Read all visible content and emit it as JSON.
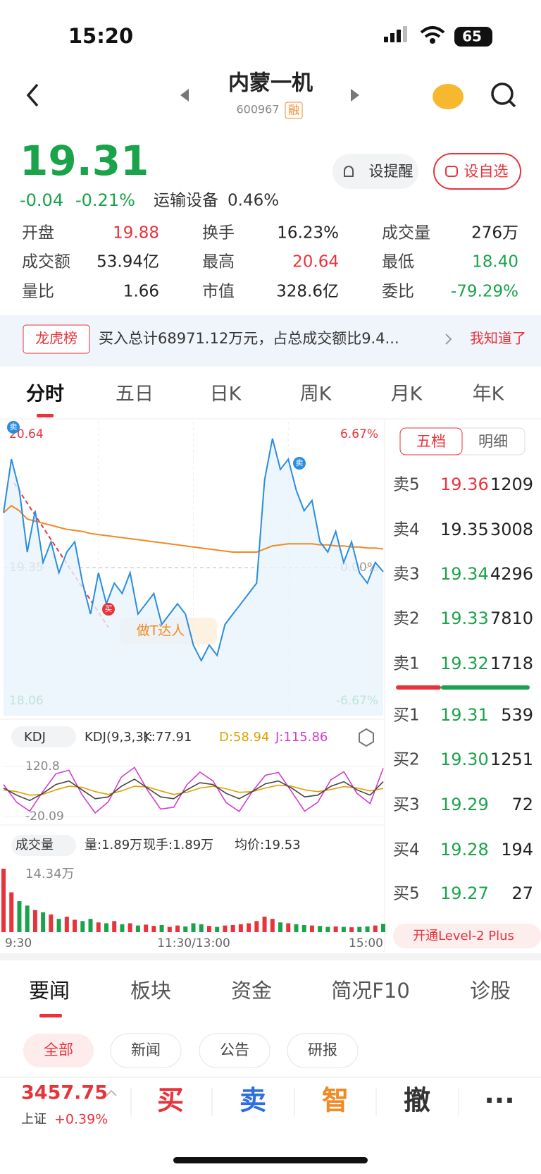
{
  "status": {
    "time": "15:20",
    "battery": "65"
  },
  "header": {
    "name": "内蒙一机",
    "code": "600967",
    "badge": "融"
  },
  "quote": {
    "price": "19.31",
    "change": "-0.04",
    "pct": "-0.21%",
    "sector": "运输设备",
    "sector_pct": "0.46%",
    "buttons": [
      "设提醒",
      "设自选"
    ]
  },
  "stats": [
    {
      "label": "开盘",
      "value": "19.88",
      "color": "#e8333b"
    },
    {
      "label": "换手",
      "value": "16.23%",
      "color": "#222"
    },
    {
      "label": "成交量",
      "value": "276万",
      "color": "#222"
    },
    {
      "label": "成交额",
      "value": "53.94亿",
      "color": "#222"
    },
    {
      "label": "最高",
      "value": "20.64",
      "color": "#e8333b"
    },
    {
      "label": "最低",
      "value": "18.40",
      "color": "#1aa34a"
    },
    {
      "label": "量比",
      "value": "1.66",
      "color": "#222"
    },
    {
      "label": "市值",
      "value": "328.6亿",
      "color": "#222"
    },
    {
      "label": "委比",
      "value": "-79.29%",
      "color": "#1aa34a"
    }
  ],
  "banner": {
    "tag": "龙虎榜",
    "text": "买入总计68971.12万元，占总成交额比9.4...",
    "action": "我知道了"
  },
  "tabs": [
    "分时",
    "五日",
    "日K",
    "周K",
    "月K",
    "年K"
  ],
  "chart_data": {
    "type": "line",
    "yticks": [
      20.64,
      19.35,
      18.06
    ],
    "right_ticks": [
      "6.67%",
      "0.00%",
      "-6.67%"
    ],
    "price_color": "#2a8de0",
    "avg_color": "#f08a24",
    "price": [
      19.88,
      20.4,
      20.1,
      19.5,
      19.9,
      19.4,
      19.6,
      19.3,
      19.5,
      19.6,
      19.2,
      18.9,
      19.3,
      19.0,
      19.2,
      19.1,
      19.3,
      18.9,
      19.0,
      19.1,
      18.8,
      18.9,
      19.0,
      18.9,
      18.6,
      18.45,
      18.6,
      18.5,
      18.8,
      18.9,
      19.0,
      19.1,
      19.2,
      20.2,
      20.6,
      20.3,
      20.4,
      20.1,
      19.9,
      20.0,
      19.6,
      19.5,
      19.7,
      19.4,
      19.6,
      19.3,
      19.2,
      19.4,
      19.31
    ],
    "avg": [
      19.88,
      19.95,
      19.9,
      19.82,
      19.8,
      19.78,
      19.76,
      19.74,
      19.72,
      19.71,
      19.7,
      19.68,
      19.67,
      19.66,
      19.65,
      19.64,
      19.63,
      19.62,
      19.61,
      19.6,
      19.59,
      19.58,
      19.57,
      19.56,
      19.55,
      19.54,
      19.53,
      19.52,
      19.51,
      19.5,
      19.5,
      19.5,
      19.5,
      19.53,
      19.56,
      19.57,
      19.58,
      19.58,
      19.58,
      19.58,
      19.57,
      19.57,
      19.56,
      19.56,
      19.55,
      19.55,
      19.54,
      19.54,
      19.53
    ],
    "markers": [
      "卖",
      "买",
      "卖"
    ],
    "promo": "做T达人",
    "times": [
      "9:30",
      "11:30/13:00",
      "15:00"
    ]
  },
  "kdj": {
    "label": "KDJ",
    "params": "KDJ(9,3,3):",
    "k": "K:77.91",
    "d": "D:58.94",
    "j": "J:115.86",
    "yticks": [
      120.8,
      -20.09
    ],
    "K": [
      60,
      40,
      25,
      45,
      70,
      80,
      55,
      30,
      35,
      65,
      85,
      60,
      35,
      30,
      55,
      75,
      70,
      45,
      30,
      50,
      72,
      80,
      60,
      35,
      40,
      65,
      78,
      55,
      40,
      77.91
    ],
    "D": [
      55,
      50,
      40,
      42,
      55,
      65,
      62,
      50,
      42,
      52,
      65,
      63,
      52,
      42,
      48,
      60,
      65,
      58,
      48,
      50,
      60,
      68,
      65,
      55,
      50,
      56,
      64,
      60,
      52,
      58.94
    ],
    "J": [
      70,
      20,
      -5,
      50,
      100,
      110,
      41,
      -10,
      21,
      91,
      118,
      54,
      1,
      6,
      69,
      105,
      80,
      19,
      -6,
      50,
      96,
      104,
      50,
      -5,
      20,
      83,
      106,
      45,
      16,
      115.86
    ]
  },
  "volume": {
    "label": "成交量",
    "qty": "量:1.89万",
    "now": "现手:1.89万",
    "avg": "均价:19.53",
    "yticks": [
      {
        "value": 143400,
        "label": "14.34万"
      }
    ],
    "values": [
      143400,
      90000,
      70000,
      60000,
      50000,
      45000,
      40000,
      30000,
      35000,
      28000,
      25000,
      30000,
      22000,
      20000,
      25000,
      18000,
      20000,
      15000,
      17000,
      14000,
      16000,
      12000,
      15000,
      13000,
      20000,
      18000,
      14000,
      12000,
      15000,
      16000,
      18000,
      20000,
      25000,
      35000,
      30000,
      22000,
      20000,
      18000,
      16000,
      15000,
      14000,
      12000,
      13000,
      12000,
      11000,
      12000,
      13000,
      15000,
      18900
    ]
  },
  "orderbook": {
    "tabs": [
      "五档",
      "明细"
    ],
    "asks": [
      [
        "卖5",
        "19.36",
        "1209"
      ],
      [
        "卖4",
        "19.35",
        "3008"
      ],
      [
        "卖3",
        "19.34",
        "4296"
      ],
      [
        "卖2",
        "19.33",
        "7810"
      ],
      [
        "卖1",
        "19.32",
        "1718"
      ]
    ],
    "bids": [
      [
        "买1",
        "19.31",
        "539"
      ],
      [
        "买2",
        "19.30",
        "1251"
      ],
      [
        "买3",
        "19.29",
        "72"
      ],
      [
        "买4",
        "19.28",
        "194"
      ],
      [
        "买5",
        "19.27",
        "27"
      ]
    ],
    "upgrade": "开通Level-2 Plus"
  },
  "news_tabs": [
    "要闻",
    "板块",
    "资金",
    "简况F10",
    "诊股"
  ],
  "filters": [
    "全部",
    "新闻",
    "公告",
    "研报"
  ],
  "bottom": {
    "index_value": "3457.75",
    "index_name": "上证",
    "index_pct": "+0.39%",
    "actions": [
      "买",
      "卖",
      "智",
      "撤",
      "···"
    ]
  }
}
